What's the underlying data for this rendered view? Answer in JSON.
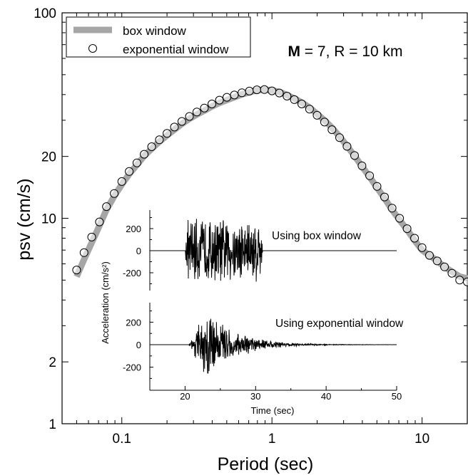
{
  "chart_data": [
    {
      "type": "line",
      "xscale": "log",
      "yscale": "log",
      "xlim": [
        0.04,
        20
      ],
      "ylim": [
        1,
        100
      ],
      "xlabel": "Period (sec)",
      "ylabel": "psv (cm/s)",
      "xticks": [
        0.1,
        1,
        10
      ],
      "xtick_labels": [
        "0.1",
        "1",
        "10"
      ],
      "yticks": [
        1,
        2,
        10,
        20,
        100
      ],
      "ytick_labels": [
        "1",
        "2",
        "10",
        "20",
        "100"
      ],
      "annotation": {
        "bold": "M",
        "rest": " = 7, R = 10 km"
      },
      "legend": {
        "placement": "top-left",
        "entries": [
          {
            "label": "box window",
            "style": "thick gray line",
            "color": "#a6a6a6"
          },
          {
            "label": "exponential window",
            "style": "open circle"
          }
        ]
      },
      "series": [
        {
          "name": "box window",
          "color": "#a6a6a6",
          "x": [
            0.05,
            0.056,
            0.063,
            0.071,
            0.079,
            0.089,
            0.1,
            0.112,
            0.126,
            0.141,
            0.158,
            0.178,
            0.2,
            0.224,
            0.251,
            0.282,
            0.316,
            0.355,
            0.398,
            0.447,
            0.501,
            0.562,
            0.631,
            0.708,
            0.794,
            0.891,
            1.0,
            1.12,
            1.26,
            1.41,
            1.58,
            1.78,
            2.0,
            2.24,
            2.51,
            2.82,
            3.16,
            3.55,
            3.98,
            4.47,
            5.01,
            5.62,
            6.31,
            7.08,
            7.94,
            8.91,
            10.0,
            11.2,
            12.6,
            14.1,
            15.8,
            17.8,
            20.0
          ],
          "y": [
            5.2,
            6.3,
            7.6,
            9.2,
            11.0,
            12.8,
            14.6,
            16.4,
            18.2,
            20.1,
            21.8,
            23.6,
            25.3,
            27.0,
            28.8,
            30.5,
            32.0,
            33.4,
            35.0,
            36.4,
            37.6,
            38.8,
            40.1,
            41.0,
            42.0,
            42.3,
            42.0,
            41.2,
            39.8,
            38.3,
            36.6,
            34.6,
            32.2,
            30.0,
            27.6,
            25.0,
            22.5,
            20.1,
            17.9,
            15.9,
            14.1,
            12.5,
            11.0,
            9.8,
            8.8,
            7.8,
            7.0,
            6.6,
            6.2,
            5.8,
            5.5,
            5.2,
            5.1
          ]
        },
        {
          "name": "exponential window",
          "x": [
            0.05,
            0.056,
            0.063,
            0.071,
            0.079,
            0.089,
            0.1,
            0.112,
            0.126,
            0.141,
            0.158,
            0.178,
            0.2,
            0.224,
            0.251,
            0.282,
            0.316,
            0.355,
            0.398,
            0.447,
            0.501,
            0.562,
            0.631,
            0.708,
            0.794,
            0.891,
            1.0,
            1.12,
            1.26,
            1.41,
            1.58,
            1.78,
            2.0,
            2.24,
            2.51,
            2.82,
            3.16,
            3.55,
            3.98,
            4.47,
            5.01,
            5.62,
            6.31,
            7.08,
            7.94,
            8.91,
            10.0,
            11.2,
            12.6,
            14.1,
            15.8,
            17.8,
            20.0
          ],
          "y": [
            5.6,
            6.8,
            8.1,
            9.6,
            11.4,
            13.2,
            15.1,
            16.9,
            18.6,
            20.5,
            22.3,
            24.1,
            25.9,
            27.8,
            29.6,
            31.3,
            32.9,
            34.4,
            36.0,
            37.6,
            38.8,
            39.8,
            40.8,
            41.6,
            42.2,
            42.3,
            41.7,
            40.7,
            39.3,
            37.8,
            36.0,
            34.0,
            31.7,
            29.4,
            27.0,
            24.7,
            22.4,
            20.2,
            18.0,
            16.1,
            14.3,
            12.7,
            11.2,
            10.0,
            8.9,
            8.0,
            7.2,
            6.6,
            6.2,
            5.8,
            5.4,
            5.0,
            4.9
          ]
        }
      ]
    },
    {
      "type": "line",
      "placement": "inset",
      "xlim": [
        15,
        50
      ],
      "xticks": [
        20,
        30,
        40,
        50
      ],
      "xtick_labels": [
        "20",
        "30",
        "40",
        "50"
      ],
      "xlabel": "Time (sec)",
      "ylabel": "Acceleration (cm/s²)",
      "panels": [
        {
          "label": "Using box window",
          "ylim": [
            -340,
            340
          ],
          "yticks": [
            200,
            0,
            -200
          ],
          "ytick_labels": [
            "200",
            "0",
            "-200"
          ],
          "signal": {
            "start": 20,
            "end": 31,
            "envelope": "box",
            "peak": 320
          }
        },
        {
          "label": "Using exponential window",
          "ylim": [
            -340,
            340
          ],
          "yticks": [
            200,
            0,
            -200
          ],
          "ytick_labels": [
            "200",
            "0",
            "-200"
          ],
          "signal": {
            "start": 20.5,
            "end": 50,
            "envelope": "exponential",
            "peak_time": 23,
            "peak": 330
          }
        }
      ]
    }
  ]
}
